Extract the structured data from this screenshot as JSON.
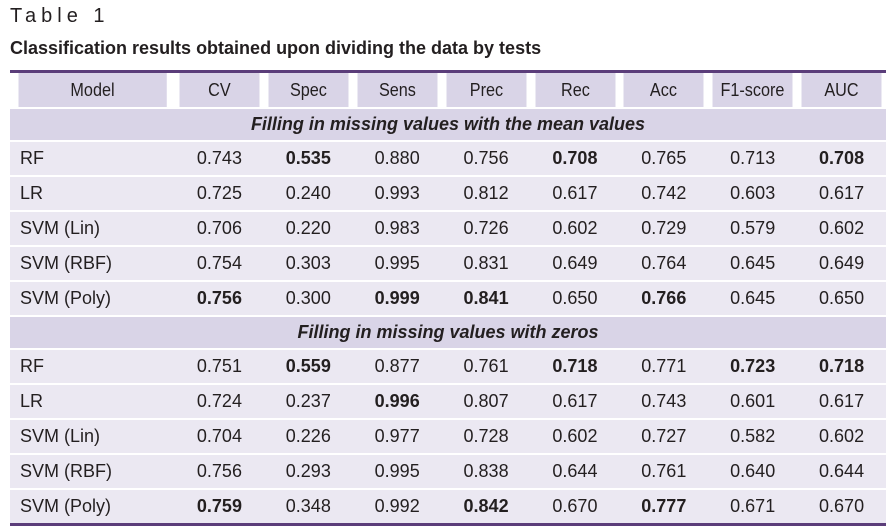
{
  "table_number": "Table 1",
  "caption": "Classification results obtained upon dividing the data by tests",
  "columns": [
    "Model",
    "CV",
    "Spec",
    "Sens",
    "Prec",
    "Rec",
    "Acc",
    "F1-score",
    "AUC"
  ],
  "sections": [
    {
      "title": "Filling in missing values with the mean values",
      "rows": [
        {
          "model": "RF",
          "values": [
            "0.743",
            "0.535",
            "0.880",
            "0.756",
            "0.708",
            "0.765",
            "0.713",
            "0.708"
          ],
          "bold": [
            1,
            4,
            7
          ]
        },
        {
          "model": "LR",
          "values": [
            "0.725",
            "0.240",
            "0.993",
            "0.812",
            "0.617",
            "0.742",
            "0.603",
            "0.617"
          ],
          "bold": []
        },
        {
          "model": "SVM (Lin)",
          "values": [
            "0.706",
            "0.220",
            "0.983",
            "0.726",
            "0.602",
            "0.729",
            "0.579",
            "0.602"
          ],
          "bold": []
        },
        {
          "model": "SVM (RBF)",
          "values": [
            "0.754",
            "0.303",
            "0.995",
            "0.831",
            "0.649",
            "0.764",
            "0.645",
            "0.649"
          ],
          "bold": []
        },
        {
          "model": "SVM (Poly)",
          "values": [
            "0.756",
            "0.300",
            "0.999",
            "0.841",
            "0.650",
            "0.766",
            "0.645",
            "0.650"
          ],
          "bold": [
            0,
            2,
            3,
            5
          ]
        }
      ]
    },
    {
      "title": "Filling in missing values with zeros",
      "rows": [
        {
          "model": "RF",
          "values": [
            "0.751",
            "0.559",
            "0.877",
            "0.761",
            "0.718",
            "0.771",
            "0.723",
            "0.718"
          ],
          "bold": [
            1,
            4,
            6,
            7
          ]
        },
        {
          "model": "LR",
          "values": [
            "0.724",
            "0.237",
            "0.996",
            "0.807",
            "0.617",
            "0.743",
            "0.601",
            "0.617"
          ],
          "bold": [
            2
          ]
        },
        {
          "model": "SVM (Lin)",
          "values": [
            "0.704",
            "0.226",
            "0.977",
            "0.728",
            "0.602",
            "0.727",
            "0.582",
            "0.602"
          ],
          "bold": []
        },
        {
          "model": "SVM (RBF)",
          "values": [
            "0.756",
            "0.293",
            "0.995",
            "0.838",
            "0.644",
            "0.761",
            "0.640",
            "0.644"
          ],
          "bold": []
        },
        {
          "model": "SVM (Poly)",
          "values": [
            "0.759",
            "0.348",
            "0.992",
            "0.842",
            "0.670",
            "0.777",
            "0.671",
            "0.670"
          ],
          "bold": [
            0,
            3,
            5
          ]
        }
      ]
    }
  ]
}
